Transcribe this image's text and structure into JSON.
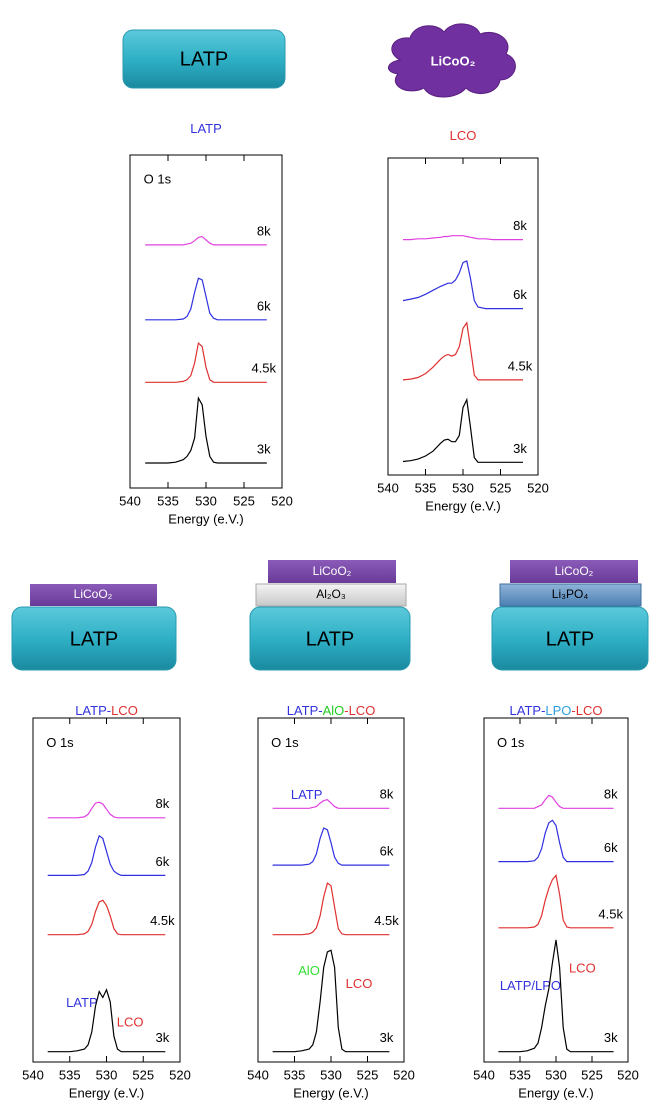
{
  "illustrations": {
    "top": {
      "substrate": "LATP",
      "cloud": "LiCoO₂"
    },
    "stacks": [
      {
        "layers": [
          "LiCoO₂"
        ],
        "substrate": "LATP"
      },
      {
        "layers": [
          "LiCoO₂",
          "Al₂O₃"
        ],
        "substrate": "LATP"
      },
      {
        "layers": [
          "LiCoO₂",
          "Li₃PO₄"
        ],
        "substrate": "LATP"
      }
    ]
  },
  "chart_data": [
    {
      "type": "line",
      "title": [
        {
          "text": "LATP",
          "color": "#3333dd"
        }
      ],
      "xlabel": "Energy (e.V.)",
      "xlim": [
        540,
        520
      ],
      "xticks": [
        540,
        535,
        530,
        525,
        520
      ],
      "ylim": [
        0,
        4
      ],
      "x": [
        538,
        537,
        536,
        535,
        534,
        533,
        532.5,
        532,
        531.5,
        531,
        530.5,
        530,
        529.5,
        529,
        528.5,
        528,
        527,
        526,
        525,
        524,
        523,
        522
      ],
      "annotations": [
        {
          "text": "O 1s",
          "x": 538.2,
          "y": 3.7,
          "color": "#000000"
        }
      ],
      "series": [
        {
          "name": "8k",
          "color": "#e040e0",
          "values": [
            2.92,
            2.92,
            2.92,
            2.92,
            2.92,
            2.92,
            2.93,
            2.94,
            2.97,
            3.01,
            3.02,
            2.98,
            2.94,
            2.92,
            2.92,
            2.92,
            2.92,
            2.92,
            2.92,
            2.92,
            2.92,
            2.92
          ]
        },
        {
          "name": "6k",
          "color": "#3030e0",
          "values": [
            2.02,
            2.02,
            2.02,
            2.02,
            2.02,
            2.03,
            2.06,
            2.15,
            2.35,
            2.52,
            2.5,
            2.3,
            2.1,
            2.04,
            2.02,
            2.02,
            2.02,
            2.02,
            2.02,
            2.02,
            2.02,
            2.02
          ]
        },
        {
          "name": "4.5k",
          "color": "#e03030",
          "values": [
            1.27,
            1.27,
            1.27,
            1.27,
            1.27,
            1.28,
            1.3,
            1.35,
            1.5,
            1.74,
            1.7,
            1.45,
            1.3,
            1.27,
            1.27,
            1.27,
            1.27,
            1.27,
            1.27,
            1.27,
            1.27,
            1.27
          ]
        },
        {
          "name": "3k",
          "color": "#000000",
          "values": [
            0.3,
            0.3,
            0.3,
            0.3,
            0.31,
            0.34,
            0.38,
            0.45,
            0.6,
            1.08,
            1.0,
            0.62,
            0.38,
            0.31,
            0.3,
            0.3,
            0.3,
            0.3,
            0.3,
            0.3,
            0.3,
            0.3
          ]
        }
      ]
    },
    {
      "type": "line",
      "title": [
        {
          "text": "LCO",
          "color": "#e03030"
        }
      ],
      "xlabel": "Energy (e.V.)",
      "xlim": [
        540,
        520
      ],
      "xticks": [
        540,
        535,
        530,
        525,
        520
      ],
      "ylim": [
        0,
        4
      ],
      "x": [
        538,
        537,
        536,
        535,
        534,
        533,
        532.5,
        532,
        531.5,
        531,
        530.5,
        530,
        529.5,
        529,
        528.5,
        528,
        527,
        526,
        525,
        524,
        523,
        522
      ],
      "annotations": [],
      "series": [
        {
          "name": "8k",
          "color": "#e040e0",
          "values": [
            2.97,
            2.97,
            2.98,
            2.98,
            2.99,
            3.0,
            3.01,
            3.01,
            3.02,
            3.02,
            3.02,
            3.02,
            3.01,
            3.0,
            2.99,
            2.98,
            2.98,
            2.97,
            2.97,
            2.97,
            2.97,
            2.97
          ]
        },
        {
          "name": "6k",
          "color": "#3030e0",
          "values": [
            2.2,
            2.22,
            2.24,
            2.28,
            2.33,
            2.38,
            2.4,
            2.42,
            2.42,
            2.46,
            2.55,
            2.68,
            2.7,
            2.48,
            2.2,
            2.12,
            2.1,
            2.1,
            2.1,
            2.1,
            2.1,
            2.1
          ]
        },
        {
          "name": "4.5k",
          "color": "#e03030",
          "values": [
            1.2,
            1.21,
            1.23,
            1.28,
            1.36,
            1.46,
            1.5,
            1.52,
            1.5,
            1.52,
            1.62,
            1.85,
            1.92,
            1.6,
            1.26,
            1.2,
            1.2,
            1.2,
            1.2,
            1.2,
            1.2,
            1.2
          ]
        },
        {
          "name": "3k",
          "color": "#000000",
          "values": [
            0.17,
            0.18,
            0.2,
            0.24,
            0.3,
            0.4,
            0.44,
            0.45,
            0.42,
            0.42,
            0.5,
            0.85,
            0.95,
            0.6,
            0.22,
            0.16,
            0.16,
            0.16,
            0.16,
            0.16,
            0.16,
            0.16
          ]
        }
      ]
    },
    {
      "type": "line",
      "title": [
        {
          "text": "LATP-",
          "color": "#3333dd"
        },
        {
          "text": "LCO",
          "color": "#e03030"
        }
      ],
      "xlabel": "Energy (e.V.)",
      "xlim": [
        540,
        520
      ],
      "xticks": [
        540,
        535,
        530,
        525,
        520
      ],
      "ylim": [
        0,
        4
      ],
      "x": [
        538,
        537,
        536,
        535,
        534,
        533,
        532.5,
        532,
        531.5,
        531,
        530.5,
        530,
        529.5,
        529,
        528.5,
        528,
        527,
        526,
        525,
        524,
        523,
        522
      ],
      "annotations": [
        {
          "text": "O 1s",
          "x": 538.2,
          "y": 3.7,
          "color": "#000000"
        },
        {
          "text": "LATP",
          "x": 535.5,
          "y": 0.68,
          "color": "#3333dd"
        },
        {
          "text": "LCO",
          "x": 528.6,
          "y": 0.45,
          "color": "#e03030"
        }
      ],
      "series": [
        {
          "name": "8k",
          "color": "#e040e0",
          "values": [
            2.84,
            2.84,
            2.84,
            2.84,
            2.84,
            2.85,
            2.88,
            2.95,
            3.01,
            3.02,
            3.0,
            2.94,
            2.88,
            2.85,
            2.84,
            2.84,
            2.84,
            2.84,
            2.84,
            2.84,
            2.84,
            2.84
          ]
        },
        {
          "name": "6k",
          "color": "#3030e0",
          "values": [
            2.17,
            2.17,
            2.17,
            2.17,
            2.17,
            2.18,
            2.22,
            2.32,
            2.5,
            2.63,
            2.6,
            2.45,
            2.3,
            2.22,
            2.19,
            2.17,
            2.17,
            2.17,
            2.17,
            2.17,
            2.17,
            2.17
          ]
        },
        {
          "name": "4.5k",
          "color": "#e03030",
          "values": [
            1.48,
            1.48,
            1.48,
            1.48,
            1.48,
            1.49,
            1.52,
            1.6,
            1.75,
            1.86,
            1.88,
            1.82,
            1.7,
            1.55,
            1.49,
            1.48,
            1.48,
            1.48,
            1.48,
            1.48,
            1.48,
            1.48
          ]
        },
        {
          "name": "3k",
          "color": "#000000",
          "values": [
            0.12,
            0.12,
            0.12,
            0.12,
            0.13,
            0.15,
            0.2,
            0.35,
            0.65,
            0.82,
            0.75,
            0.84,
            0.7,
            0.3,
            0.15,
            0.12,
            0.12,
            0.12,
            0.12,
            0.12,
            0.12,
            0.12
          ]
        }
      ]
    },
    {
      "type": "line",
      "title": [
        {
          "text": "LATP-",
          "color": "#3333dd"
        },
        {
          "text": "AlO",
          "color": "#22cc22"
        },
        {
          "text": "-LCO",
          "color": "#e03030"
        }
      ],
      "xlabel": "Energy (e.V.)",
      "xlim": [
        540,
        520
      ],
      "xticks": [
        540,
        535,
        530,
        525,
        520
      ],
      "ylim": [
        0,
        4
      ],
      "x": [
        538,
        537,
        536,
        535,
        534,
        533,
        532.5,
        532,
        531.5,
        531,
        530.5,
        530,
        529.5,
        529,
        528.5,
        528,
        527,
        526,
        525,
        524,
        523,
        522
      ],
      "annotations": [
        {
          "text": "O 1s",
          "x": 538.2,
          "y": 3.7,
          "color": "#000000"
        },
        {
          "text": "LATP",
          "x": 535.5,
          "y": 3.1,
          "color": "#3333dd"
        },
        {
          "text": "AlO",
          "x": 534.5,
          "y": 1.05,
          "color": "#33dd33"
        },
        {
          "text": "LCO",
          "x": 528,
          "y": 0.9,
          "color": "#e03030"
        }
      ],
      "series": [
        {
          "name": "8k",
          "color": "#e040e0",
          "values": [
            2.95,
            2.95,
            2.95,
            2.95,
            2.95,
            2.95,
            2.96,
            2.97,
            3.01,
            3.04,
            3.05,
            3.01,
            2.97,
            2.95,
            2.95,
            2.95,
            2.95,
            2.95,
            2.95,
            2.95,
            2.95,
            2.95
          ]
        },
        {
          "name": "6k",
          "color": "#3030e0",
          "values": [
            2.29,
            2.29,
            2.29,
            2.29,
            2.29,
            2.3,
            2.33,
            2.42,
            2.6,
            2.72,
            2.7,
            2.55,
            2.38,
            2.31,
            2.29,
            2.29,
            2.29,
            2.29,
            2.29,
            2.29,
            2.29,
            2.29
          ]
        },
        {
          "name": "4.5k",
          "color": "#e03030",
          "values": [
            1.48,
            1.48,
            1.48,
            1.48,
            1.48,
            1.49,
            1.51,
            1.56,
            1.7,
            1.92,
            2.08,
            2.05,
            1.8,
            1.55,
            1.49,
            1.48,
            1.48,
            1.48,
            1.48,
            1.48,
            1.48,
            1.48
          ]
        },
        {
          "name": "3k",
          "color": "#000000",
          "values": [
            0.12,
            0.12,
            0.12,
            0.12,
            0.13,
            0.15,
            0.2,
            0.35,
            0.7,
            1.1,
            1.28,
            1.3,
            1.1,
            0.4,
            0.15,
            0.12,
            0.12,
            0.12,
            0.12,
            0.12,
            0.12,
            0.12
          ]
        }
      ]
    },
    {
      "type": "line",
      "title": [
        {
          "text": "LATP-",
          "color": "#3333dd"
        },
        {
          "text": "LPO",
          "color": "#2d9fe0"
        },
        {
          "text": "-LCO",
          "color": "#e03030"
        }
      ],
      "xlabel": "Energy (e.V.)",
      "xlim": [
        540,
        520
      ],
      "xticks": [
        540,
        535,
        530,
        525,
        520
      ],
      "ylim": [
        0,
        4
      ],
      "x": [
        538,
        537,
        536,
        535,
        534,
        533,
        532.5,
        532,
        531.5,
        531,
        530.5,
        530,
        529.5,
        529,
        528.5,
        528,
        527,
        526,
        525,
        524,
        523,
        522
      ],
      "annotations": [
        {
          "text": "O 1s",
          "x": 538.2,
          "y": 3.7,
          "color": "#000000"
        },
        {
          "text": "LATP/LPO",
          "x": 537.8,
          "y": 0.88,
          "color": "#3333dd"
        },
        {
          "text": "LCO",
          "x": 528.2,
          "y": 1.08,
          "color": "#e03030"
        }
      ],
      "series": [
        {
          "name": "8k",
          "color": "#e040e0",
          "values": [
            2.95,
            2.95,
            2.95,
            2.95,
            2.95,
            2.95,
            2.97,
            2.99,
            3.05,
            3.1,
            3.08,
            3.02,
            2.97,
            2.95,
            2.95,
            2.95,
            2.95,
            2.95,
            2.95,
            2.95,
            2.95,
            2.95
          ]
        },
        {
          "name": "6k",
          "color": "#3030e0",
          "values": [
            2.33,
            2.33,
            2.33,
            2.33,
            2.33,
            2.34,
            2.38,
            2.48,
            2.66,
            2.78,
            2.81,
            2.75,
            2.55,
            2.38,
            2.33,
            2.33,
            2.33,
            2.33,
            2.33,
            2.33,
            2.33,
            2.33
          ]
        },
        {
          "name": "4.5k",
          "color": "#e03030",
          "values": [
            1.56,
            1.56,
            1.56,
            1.56,
            1.56,
            1.57,
            1.6,
            1.7,
            1.88,
            2.02,
            2.12,
            2.17,
            1.95,
            1.65,
            1.57,
            1.56,
            1.56,
            1.56,
            1.56,
            1.56,
            1.56,
            1.56
          ]
        },
        {
          "name": "3k",
          "color": "#000000",
          "values": [
            0.12,
            0.12,
            0.12,
            0.12,
            0.13,
            0.16,
            0.22,
            0.4,
            0.65,
            0.85,
            1.15,
            1.42,
            1.1,
            0.4,
            0.15,
            0.12,
            0.12,
            0.12,
            0.12,
            0.12,
            0.12,
            0.12
          ]
        }
      ]
    }
  ]
}
